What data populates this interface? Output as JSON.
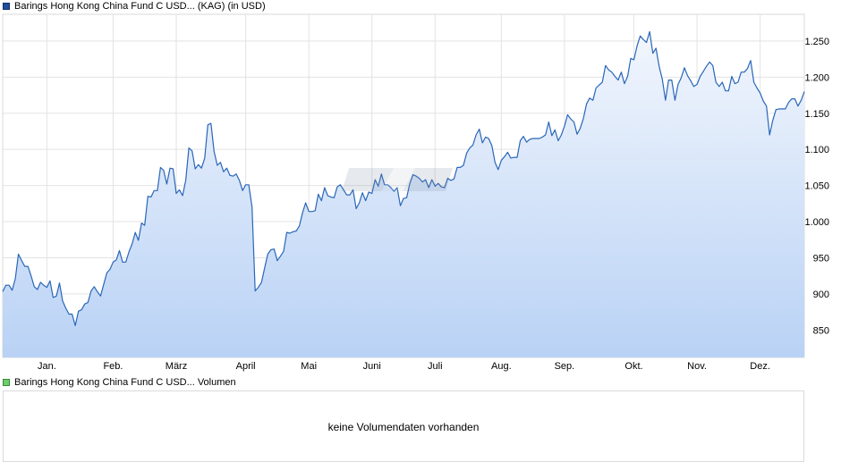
{
  "legend": {
    "price_label": "Barings Hong Kong China Fund C USD... (KAG) (in USD)",
    "price_color": "#1f4e9c",
    "volume_label": "Barings Hong Kong China Fund C USD... Volumen",
    "volume_color": "#6ccd6c"
  },
  "volume": {
    "empty_message": "keine Volumendaten vorhanden"
  },
  "chart_data": {
    "type": "area",
    "title": "",
    "xlabel": "",
    "ylabel": "",
    "series": [
      {
        "name": "Barings Hong Kong China Fund C USD... (KAG) (in USD)",
        "color": "#2a66b8",
        "values": [
          903,
          912,
          912,
          905,
          921,
          955,
          946,
          938,
          938,
          925,
          910,
          906,
          916,
          912,
          909,
          918,
          895,
          897,
          915,
          890,
          880,
          872,
          872,
          856,
          876,
          878,
          886,
          888,
          904,
          910,
          903,
          897,
          913,
          929,
          934,
          944,
          947,
          960,
          944,
          944,
          958,
          969,
          985,
          974,
          998,
          995,
          1035,
          1034,
          1043,
          1043,
          1075,
          1071,
          1052,
          1074,
          1073,
          1039,
          1044,
          1036,
          1057,
          1102,
          1098,
          1073,
          1079,
          1074,
          1088,
          1134,
          1136,
          1097,
          1078,
          1082,
          1069,
          1074,
          1064,
          1063,
          1066,
          1057,
          1043,
          1051,
          1051,
          1020,
          904,
          909,
          916,
          936,
          955,
          961,
          962,
          946,
          952,
          959,
          985,
          984,
          986,
          987,
          994,
          1012,
          1026,
          1014,
          1014,
          1015,
          1038,
          1029,
          1047,
          1036,
          1034,
          1033,
          1048,
          1051,
          1044,
          1037,
          1037,
          1044,
          1018,
          1026,
          1040,
          1029,
          1041,
          1039,
          1058,
          1049,
          1066,
          1051,
          1051,
          1047,
          1042,
          1047,
          1022,
          1032,
          1033,
          1053,
          1065,
          1063,
          1060,
          1055,
          1058,
          1047,
          1058,
          1049,
          1053,
          1048,
          1047,
          1060,
          1057,
          1059,
          1075,
          1075,
          1078,
          1095,
          1102,
          1106,
          1120,
          1128,
          1109,
          1117,
          1115,
          1105,
          1082,
          1072,
          1085,
          1090,
          1096,
          1088,
          1089,
          1089,
          1112,
          1118,
          1110,
          1114,
          1115,
          1115,
          1115,
          1117,
          1120,
          1138,
          1119,
          1127,
          1112,
          1120,
          1132,
          1148,
          1142,
          1138,
          1121,
          1129,
          1143,
          1163,
          1171,
          1168,
          1185,
          1189,
          1193,
          1216,
          1210,
          1207,
          1201,
          1196,
          1207,
          1191,
          1201,
          1226,
          1224,
          1243,
          1257,
          1252,
          1248,
          1263,
          1233,
          1240,
          1215,
          1197,
          1168,
          1196,
          1196,
          1168,
          1190,
          1199,
          1213,
          1202,
          1195,
          1187,
          1190,
          1201,
          1208,
          1215,
          1221,
          1216,
          1193,
          1187,
          1193,
          1181,
          1181,
          1201,
          1191,
          1193,
          1207,
          1207,
          1212,
          1223,
          1193,
          1185,
          1178,
          1167,
          1160,
          1120,
          1140,
          1155,
          1156,
          1156,
          1156,
          1165,
          1170,
          1170,
          1160,
          1168,
          1180
        ]
      }
    ],
    "x_tick_labels": [
      "Jan.",
      "Feb.",
      "März",
      "April",
      "Mai",
      "Juni",
      "Juli",
      "Aug.",
      "Sep.",
      "Okt.",
      "Nov.",
      "Dez."
    ],
    "x_tick_positions": [
      14,
      35,
      55,
      77,
      97,
      117,
      137,
      158,
      178,
      200,
      220,
      240
    ],
    "y_ticks": [
      850,
      900,
      950,
      1000,
      1050,
      1100,
      1150,
      1200,
      1250
    ],
    "y_tick_labels": [
      "850",
      "900",
      "950",
      "1.000",
      "1.050",
      "1.100",
      "1.150",
      "1.200",
      "1.250"
    ],
    "ylim": [
      812,
      1287
    ],
    "grid": true,
    "legend_position": "top-left"
  }
}
